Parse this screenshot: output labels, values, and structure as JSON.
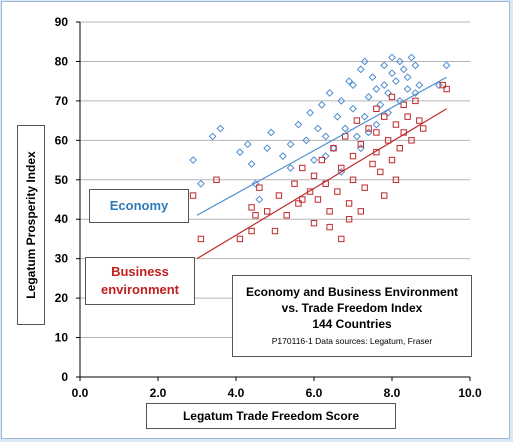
{
  "chart_data": {
    "type": "scatter",
    "title": "Economy and Business Environment",
    "title2": "vs. Trade Freedom Index",
    "subtitle": "144 Countries",
    "note": "P170116-1 Data sources: Legatum, Fraser",
    "xlabel": "Legatum Trade Freedom Score",
    "ylabel": "Legatum Prosperity Index",
    "xlim": [
      0,
      10
    ],
    "ylim": [
      0,
      90
    ],
    "x_ticks": [
      "0.0",
      "2.0",
      "4.0",
      "6.0",
      "8.0",
      "10.0"
    ],
    "y_ticks": [
      "0",
      "10",
      "20",
      "30",
      "40",
      "50",
      "60",
      "70",
      "80",
      "90"
    ],
    "grid": true,
    "series": [
      {
        "name": "Economy",
        "color": "#4f8ed0",
        "marker": "diamond",
        "trendline": {
          "x": [
            3.0,
            9.4
          ],
          "y": [
            41,
            76
          ]
        },
        "points": [
          [
            2.9,
            55
          ],
          [
            3.1,
            49
          ],
          [
            3.4,
            61
          ],
          [
            3.6,
            63
          ],
          [
            4.1,
            57
          ],
          [
            4.3,
            59
          ],
          [
            4.4,
            54
          ],
          [
            4.5,
            49
          ],
          [
            4.6,
            45
          ],
          [
            4.8,
            58
          ],
          [
            4.9,
            62
          ],
          [
            5.2,
            56
          ],
          [
            5.4,
            59
          ],
          [
            5.6,
            64
          ],
          [
            5.8,
            60
          ],
          [
            5.9,
            67
          ],
          [
            6.0,
            55
          ],
          [
            6.1,
            63
          ],
          [
            6.2,
            69
          ],
          [
            6.3,
            61
          ],
          [
            6.4,
            72
          ],
          [
            6.5,
            58
          ],
          [
            6.6,
            66
          ],
          [
            6.7,
            70
          ],
          [
            6.8,
            63
          ],
          [
            6.9,
            75
          ],
          [
            7.0,
            68
          ],
          [
            7.0,
            74
          ],
          [
            7.1,
            61
          ],
          [
            7.2,
            78
          ],
          [
            7.3,
            80
          ],
          [
            7.3,
            66
          ],
          [
            7.4,
            71
          ],
          [
            7.5,
            76
          ],
          [
            7.6,
            64
          ],
          [
            7.6,
            73
          ],
          [
            7.7,
            69
          ],
          [
            7.8,
            79
          ],
          [
            7.8,
            74
          ],
          [
            7.9,
            72
          ],
          [
            8.0,
            81
          ],
          [
            8.0,
            77
          ],
          [
            8.1,
            75
          ],
          [
            8.2,
            80
          ],
          [
            8.2,
            70
          ],
          [
            8.3,
            78
          ],
          [
            8.4,
            76
          ],
          [
            8.4,
            73
          ],
          [
            8.5,
            81
          ],
          [
            8.6,
            79
          ],
          [
            8.7,
            74
          ],
          [
            9.2,
            74
          ],
          [
            9.4,
            79
          ],
          [
            7.2,
            58
          ],
          [
            6.7,
            52
          ],
          [
            5.4,
            53
          ],
          [
            6.3,
            56
          ],
          [
            7.9,
            67
          ],
          [
            8.6,
            72
          ],
          [
            7.4,
            62
          ]
        ]
      },
      {
        "name": "Business environment",
        "color": "#c0282b",
        "marker": "square",
        "trendline": {
          "x": [
            3.0,
            9.4
          ],
          "y": [
            30,
            68
          ]
        },
        "points": [
          [
            2.9,
            46
          ],
          [
            3.1,
            35
          ],
          [
            3.5,
            50
          ],
          [
            4.1,
            35
          ],
          [
            4.4,
            43
          ],
          [
            4.4,
            37
          ],
          [
            4.5,
            41
          ],
          [
            4.6,
            48
          ],
          [
            4.8,
            42
          ],
          [
            5.0,
            37
          ],
          [
            5.1,
            46
          ],
          [
            5.3,
            41
          ],
          [
            5.5,
            49
          ],
          [
            5.6,
            44
          ],
          [
            5.7,
            53
          ],
          [
            5.9,
            47
          ],
          [
            6.0,
            39
          ],
          [
            6.0,
            51
          ],
          [
            6.1,
            45
          ],
          [
            6.2,
            55
          ],
          [
            6.3,
            49
          ],
          [
            6.4,
            42
          ],
          [
            6.5,
            58
          ],
          [
            6.6,
            47
          ],
          [
            6.7,
            53
          ],
          [
            6.7,
            35
          ],
          [
            6.8,
            61
          ],
          [
            6.9,
            44
          ],
          [
            7.0,
            56
          ],
          [
            7.0,
            50
          ],
          [
            7.1,
            65
          ],
          [
            7.2,
            59
          ],
          [
            7.3,
            48
          ],
          [
            7.4,
            63
          ],
          [
            7.5,
            54
          ],
          [
            7.6,
            68
          ],
          [
            7.6,
            57
          ],
          [
            7.7,
            52
          ],
          [
            7.8,
            66
          ],
          [
            7.9,
            60
          ],
          [
            8.0,
            71
          ],
          [
            8.0,
            55
          ],
          [
            8.1,
            64
          ],
          [
            8.2,
            58
          ],
          [
            8.3,
            69
          ],
          [
            8.3,
            62
          ],
          [
            8.4,
            66
          ],
          [
            8.5,
            60
          ],
          [
            8.6,
            70
          ],
          [
            8.7,
            65
          ],
          [
            8.8,
            63
          ],
          [
            9.3,
            74
          ],
          [
            9.4,
            73
          ],
          [
            7.2,
            42
          ],
          [
            6.4,
            38
          ],
          [
            5.7,
            45
          ],
          [
            7.8,
            46
          ],
          [
            8.1,
            50
          ],
          [
            6.9,
            40
          ],
          [
            7.6,
            62
          ]
        ]
      }
    ],
    "annotations": {
      "economy": "Economy",
      "business_line1": "Business",
      "business_line2": "environment"
    }
  }
}
